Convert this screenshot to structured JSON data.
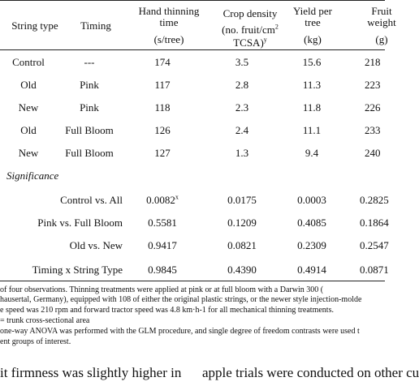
{
  "table": {
    "headers": {
      "string_type": "String type",
      "timing": "Timing",
      "hand_thinning_l1": "Hand thinning",
      "hand_thinning_l2": "time",
      "hand_thinning_l3": "(s/tree)",
      "crop_density_l1": "Crop density",
      "crop_density_l2": "(no. fruit/cm",
      "crop_density_sup2": "2",
      "crop_density_l3": "TCSA)",
      "crop_density_supy": "y",
      "yield_l1": "Yield per",
      "yield_l2": "tree",
      "yield_l3": "(kg)",
      "fruit_l1": "Fruit",
      "fruit_l2": "weight",
      "fruit_l3": "(g)"
    },
    "rows": [
      {
        "string_type": "Control",
        "timing": "---",
        "time": "174",
        "density": "3.5",
        "yield": "15.6",
        "weight": "218"
      },
      {
        "string_type": "Old",
        "timing": "Pink",
        "time": "117",
        "density": "2.8",
        "yield": "11.3",
        "weight": "223"
      },
      {
        "string_type": "New",
        "timing": "Pink",
        "time": "118",
        "density": "2.3",
        "yield": "11.8",
        "weight": "226"
      },
      {
        "string_type": "Old",
        "timing": "Full Bloom",
        "time": "126",
        "density": "2.4",
        "yield": "11.1",
        "weight": "233"
      },
      {
        "string_type": "New",
        "timing": "Full Bloom",
        "time": "127",
        "density": "1.3",
        "yield": "9.4",
        "weight": "240"
      }
    ],
    "significance_label": "Significance",
    "contrasts": [
      {
        "label": "Control vs. All",
        "time": "0.0082",
        "time_sup": "x",
        "density": "0.0175",
        "yield": "0.0003",
        "weight": "0.2825"
      },
      {
        "label": "Pink vs. Full Bloom",
        "time": "0.5581",
        "time_sup": "",
        "density": "0.1209",
        "yield": "0.4085",
        "weight": "0.1864"
      },
      {
        "label": "Old vs. New",
        "time": "0.9417",
        "time_sup": "",
        "density": "0.0821",
        "yield": "0.2309",
        "weight": "0.2547"
      },
      {
        "label": "Timing x String Type",
        "time": "0.9845",
        "time_sup": "",
        "density": "0.4390",
        "yield": "0.4914",
        "weight": "0.0871"
      }
    ]
  },
  "footnotes": {
    "line1": "of four observations. Thinning treatments were applied at pink or at full bloom with a Darwin 300 (",
    "line2": "hausertal, Germany), equipped with 108 of either the original plastic strings, or the newer style injection-molde",
    "line3": "e speed was 210 rpm and forward tractor speed was 4.8 km·h-1 for all mechanical thinning treatments.",
    "line4": "= trunk cross-sectional area",
    "line5": "one-way ANOVA was performed with the GLM procedure, and single degree of freedom contrasts were used t",
    "line6": "ent groups of interest."
  },
  "body_text": {
    "left": "it  firmness  was  slightly  higher  in",
    "right": "apple trials were conducted on other cu"
  }
}
